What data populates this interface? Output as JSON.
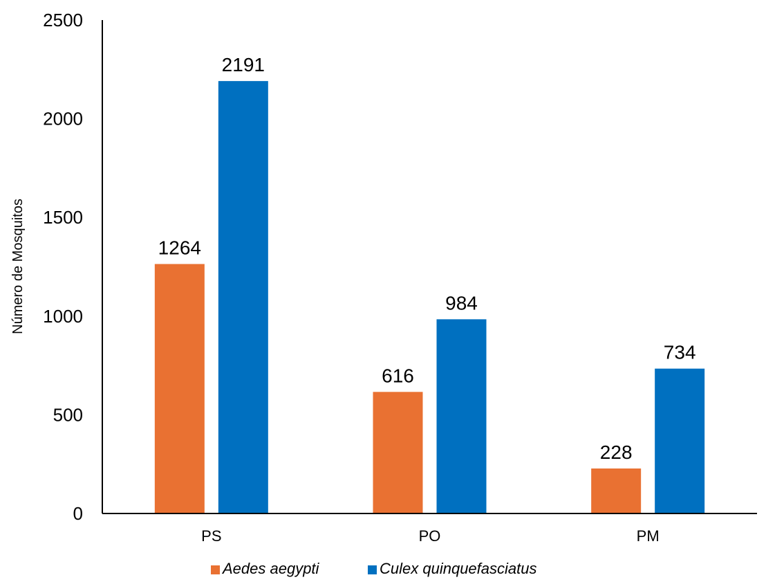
{
  "chart_data": {
    "type": "bar",
    "title": "",
    "xlabel": "",
    "ylabel": "Número de Mosquitos",
    "categories": [
      "PS",
      "PO",
      "PM"
    ],
    "series": [
      {
        "name": "Aedes aegypti",
        "values": [
          1264,
          616,
          228
        ],
        "color": "#E97132"
      },
      {
        "name": "Culex quinquefasciatus",
        "values": [
          2191,
          984,
          734
        ],
        "color": "#0070C0"
      }
    ],
    "ylim": [
      0,
      2500
    ],
    "yticks": [
      0,
      500,
      1000,
      1500,
      2000,
      2500
    ],
    "grid": false,
    "legend": "bottom"
  }
}
